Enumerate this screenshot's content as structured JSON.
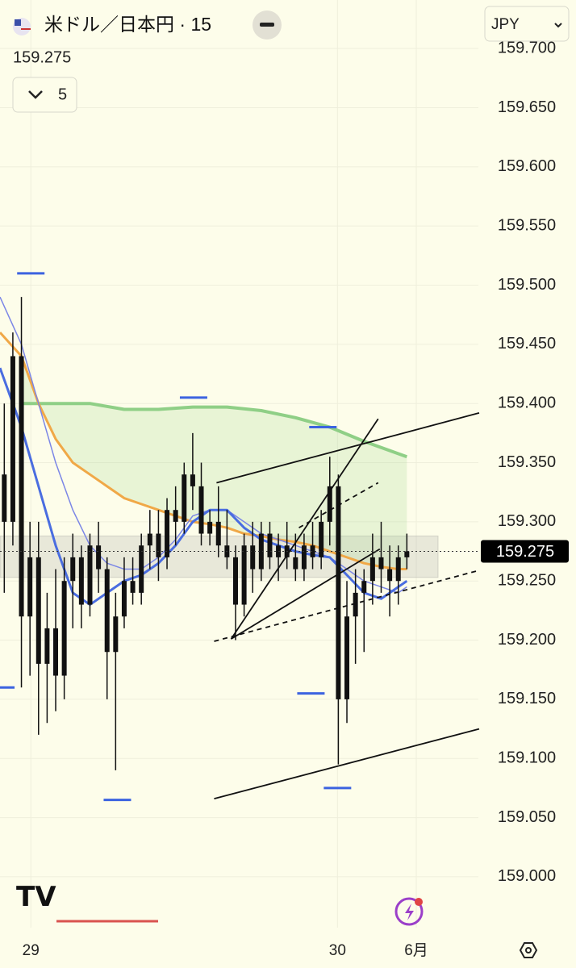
{
  "header": {
    "symbol": "米ドル／日本円 · 15",
    "price": "159.275",
    "indicator_count": "5",
    "currency": "JPY"
  },
  "chart_data": {
    "type": "candlestick",
    "color": "#111111",
    "grid": true,
    "xlim": [
      -0.5,
      55.35
    ],
    "ylim": [
      158.957,
      159.741
    ],
    "xticks": [
      {
        "value": 3.1,
        "label": "29"
      },
      {
        "value": 38.9,
        "label": "30"
      },
      {
        "value": 48.1,
        "label": "6月"
      }
    ],
    "yticks": [
      {
        "value": 159.7,
        "label": "159.700"
      },
      {
        "value": 159.65,
        "label": "159.650"
      },
      {
        "value": 159.6,
        "label": "159.600"
      },
      {
        "value": 159.55,
        "label": "159.550"
      },
      {
        "value": 159.5,
        "label": "159.500"
      },
      {
        "value": 159.45,
        "label": "159.450"
      },
      {
        "value": 159.4,
        "label": "159.400"
      },
      {
        "value": 159.35,
        "label": "159.350"
      },
      {
        "value": 159.3,
        "label": "159.300"
      },
      {
        "value": 159.25,
        "label": "159.250"
      },
      {
        "value": 159.2,
        "label": "159.200"
      },
      {
        "value": 159.15,
        "label": "159.150"
      },
      {
        "value": 159.1,
        "label": "159.100"
      },
      {
        "value": 159.05,
        "label": "159.050"
      },
      {
        "value": 159.0,
        "label": "159.000"
      }
    ],
    "last_price": 159.275,
    "zone": [
      159.253,
      159.288
    ],
    "candles": [
      [
        159.34,
        159.4,
        159.24,
        159.3
      ],
      [
        159.3,
        159.46,
        159.28,
        159.44
      ],
      [
        159.44,
        159.49,
        159.16,
        159.22
      ],
      [
        159.22,
        159.3,
        159.17,
        159.27
      ],
      [
        159.27,
        159.3,
        159.12,
        159.18
      ],
      [
        159.18,
        159.24,
        159.13,
        159.21
      ],
      [
        159.21,
        159.26,
        159.14,
        159.17
      ],
      [
        159.17,
        159.27,
        159.15,
        159.25
      ],
      [
        159.25,
        159.29,
        159.21,
        159.27
      ],
      [
        159.27,
        159.28,
        159.21,
        159.23
      ],
      [
        159.23,
        159.29,
        159.22,
        159.28
      ],
      [
        159.28,
        159.3,
        159.24,
        159.26
      ],
      [
        159.26,
        159.27,
        159.15,
        159.19
      ],
      [
        159.19,
        159.24,
        159.09,
        159.22
      ],
      [
        159.22,
        159.27,
        159.21,
        159.25
      ],
      [
        159.25,
        159.27,
        159.23,
        159.24
      ],
      [
        159.24,
        159.29,
        159.23,
        159.28
      ],
      [
        159.28,
        159.31,
        159.26,
        159.29
      ],
      [
        159.29,
        159.31,
        159.25,
        159.27
      ],
      [
        159.27,
        159.32,
        159.26,
        159.31
      ],
      [
        159.31,
        159.33,
        159.28,
        159.3
      ],
      [
        159.3,
        159.35,
        159.29,
        159.34
      ],
      [
        159.34,
        159.375,
        159.31,
        159.33
      ],
      [
        159.33,
        159.35,
        159.28,
        159.29
      ],
      [
        159.29,
        159.31,
        159.28,
        159.3
      ],
      [
        159.3,
        159.33,
        159.27,
        159.28
      ],
      [
        159.28,
        159.31,
        159.26,
        159.27
      ],
      [
        159.27,
        159.28,
        159.2,
        159.23
      ],
      [
        159.23,
        159.29,
        159.22,
        159.28
      ],
      [
        159.28,
        159.3,
        159.24,
        159.26
      ],
      [
        159.26,
        159.3,
        159.25,
        159.29
      ],
      [
        159.29,
        159.3,
        159.26,
        159.27
      ],
      [
        159.27,
        159.29,
        159.25,
        159.28
      ],
      [
        159.28,
        159.3,
        159.26,
        159.27
      ],
      [
        159.27,
        159.29,
        159.25,
        159.26
      ],
      [
        159.26,
        159.29,
        159.25,
        159.28
      ],
      [
        159.28,
        159.3,
        159.26,
        159.27
      ],
      [
        159.27,
        159.31,
        159.26,
        159.3
      ],
      [
        159.3,
        159.355,
        159.28,
        159.33
      ],
      [
        159.33,
        159.34,
        159.095,
        159.15
      ],
      [
        159.15,
        159.25,
        159.13,
        159.22
      ],
      [
        159.22,
        159.26,
        159.18,
        159.24
      ],
      [
        159.24,
        159.26,
        159.19,
        159.25
      ],
      [
        159.25,
        159.29,
        159.23,
        159.27
      ],
      [
        159.27,
        159.3,
        159.24,
        159.26
      ],
      [
        159.26,
        159.28,
        159.22,
        159.25
      ],
      [
        159.25,
        159.28,
        159.23,
        159.27
      ],
      [
        159.27,
        159.29,
        159.26,
        159.275
      ]
    ],
    "lines": [
      {
        "color": "#8fcf86",
        "width": 4,
        "fill": "rgba(160,215,140,0.22)",
        "x": [
          2,
          6,
          10,
          14,
          18,
          22,
          26,
          30,
          34,
          38,
          42,
          47
        ],
        "values": [
          159.4,
          159.4,
          159.4,
          159.395,
          159.395,
          159.397,
          159.397,
          159.394,
          159.388,
          159.38,
          159.368,
          159.355
        ]
      },
      {
        "color": "#f0a847",
        "width": 3,
        "x": [
          -0.5,
          2,
          4,
          6,
          8,
          10,
          12,
          14,
          16,
          18,
          20,
          22,
          24,
          26,
          28,
          30,
          32,
          34,
          36,
          38,
          40,
          42,
          44,
          46,
          47
        ],
        "values": [
          159.46,
          159.44,
          159.4,
          159.37,
          159.35,
          159.34,
          159.33,
          159.32,
          159.315,
          159.31,
          159.305,
          159.3,
          159.298,
          159.295,
          159.29,
          159.288,
          159.285,
          159.283,
          159.28,
          159.275,
          159.27,
          159.265,
          159.262,
          159.26,
          159.26
        ]
      },
      {
        "color": "#7b86e6",
        "width": 1.5,
        "x": [
          -0.5,
          2,
          4,
          6,
          8,
          10,
          12,
          14,
          16,
          18,
          20,
          22,
          24,
          26,
          28,
          30,
          32,
          34,
          36,
          38,
          40,
          42,
          44,
          46,
          47
        ],
        "values": [
          159.49,
          159.45,
          159.4,
          159.35,
          159.31,
          159.28,
          159.265,
          159.26,
          159.26,
          159.27,
          159.285,
          159.305,
          159.31,
          159.31,
          159.3,
          159.29,
          159.285,
          159.28,
          159.275,
          159.27,
          159.26,
          159.25,
          159.245,
          159.24,
          159.245
        ]
      },
      {
        "color": "#4a6de0",
        "width": 3,
        "x": [
          -0.5,
          2,
          4,
          6,
          8,
          10,
          12,
          14,
          16,
          18,
          20,
          22,
          24,
          26,
          28,
          30,
          32,
          34,
          36,
          38,
          40,
          42,
          44,
          46,
          47
        ],
        "values": [
          159.43,
          159.38,
          159.33,
          159.28,
          159.24,
          159.23,
          159.24,
          159.25,
          159.255,
          159.265,
          159.28,
          159.3,
          159.31,
          159.31,
          159.295,
          159.285,
          159.28,
          159.275,
          159.272,
          159.27,
          159.255,
          159.24,
          159.235,
          159.245,
          159.25
        ]
      }
    ],
    "drawings": [
      {
        "dashed": false,
        "x": [
          24.78,
          55.44
        ],
        "values": [
          159.333,
          159.392
        ]
      },
      {
        "dashed": false,
        "x": [
          26.48,
          43.65
        ],
        "values": [
          159.201,
          159.387
        ]
      },
      {
        "dashed": false,
        "x": [
          26.48,
          43.84
        ],
        "values": [
          159.201,
          159.277
        ]
      },
      {
        "dashed": true,
        "x": [
          24.5,
          55.44
        ],
        "values": [
          159.199,
          159.259
        ]
      },
      {
        "dashed": true,
        "x": [
          34.4,
          43.65
        ],
        "values": [
          159.295,
          159.333
        ]
      },
      {
        "dashed": false,
        "x": [
          24.5,
          55.44
        ],
        "values": [
          159.066,
          159.125
        ]
      }
    ],
    "markers": {
      "color": "#3c63e0",
      "x": [
        3.1,
        22.1,
        37.2,
        -0.4,
        13.2,
        35.8,
        38.9
      ],
      "values": [
        159.51,
        159.405,
        159.38,
        159.16,
        159.065,
        159.155,
        159.075
      ]
    }
  }
}
